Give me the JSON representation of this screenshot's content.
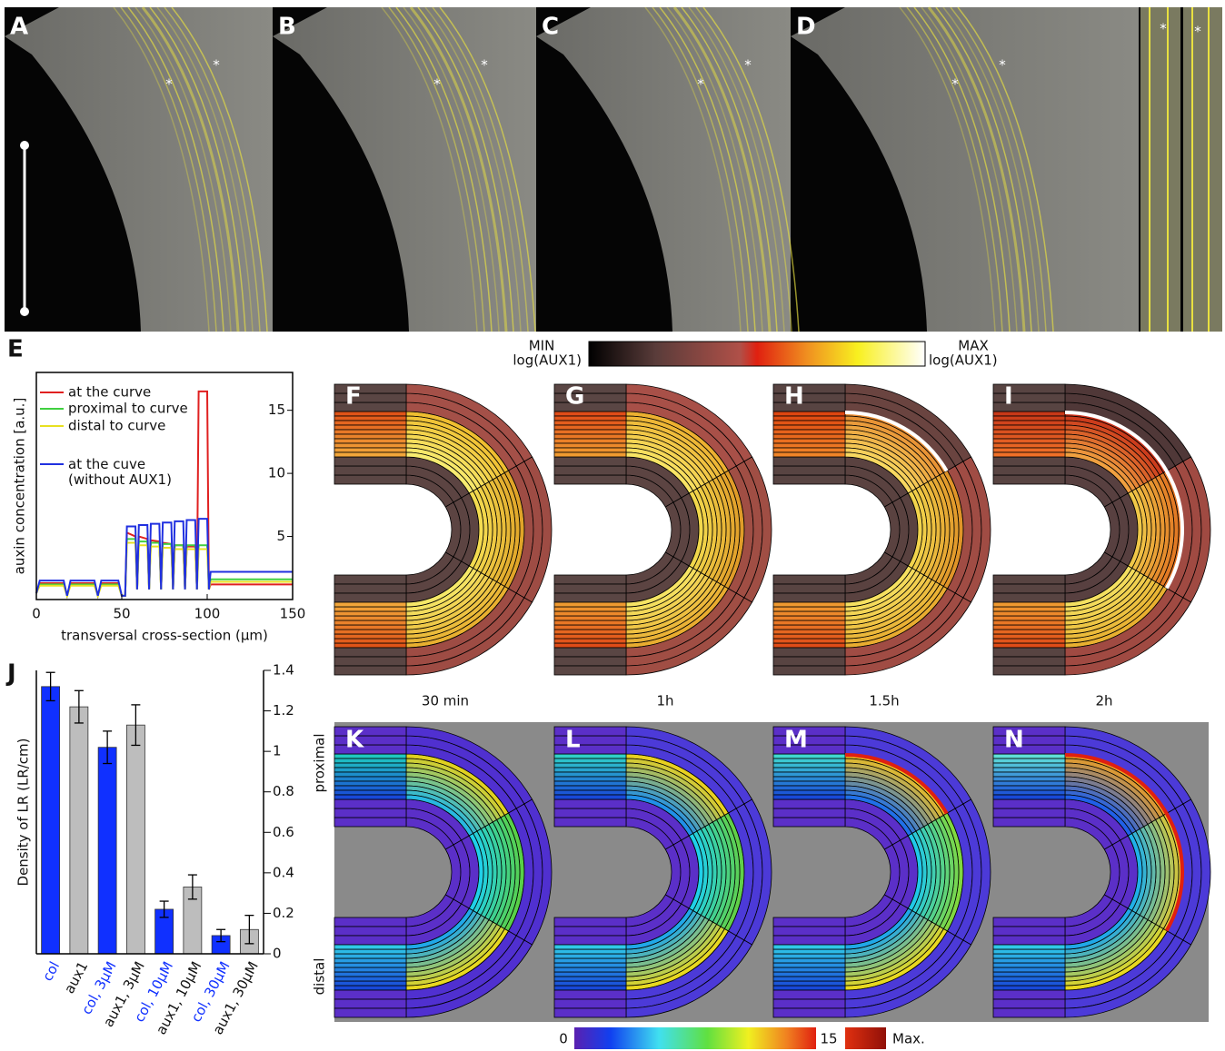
{
  "micrographs": [
    {
      "label": "A"
    },
    {
      "label": "B"
    },
    {
      "label": "C"
    },
    {
      "label": "D"
    }
  ],
  "asterisk": "*",
  "chart_data": [
    {
      "type": "line",
      "panel_label": "E",
      "ylabel": "auxin concentration [a.u.]",
      "xlabel": "transversal cross-section (μm)",
      "xlim": [
        0,
        150
      ],
      "xticks": [
        0,
        50,
        100,
        150
      ],
      "ylim": [
        0,
        18
      ],
      "yticks": [
        5,
        10,
        15
      ],
      "x": [
        0,
        2,
        16,
        18,
        20,
        34,
        36,
        38,
        48,
        50,
        52,
        53,
        58,
        59,
        60,
        65,
        66,
        67,
        72,
        73,
        74,
        79,
        80,
        81,
        86,
        87,
        88,
        93,
        94,
        95,
        100,
        101,
        102,
        150
      ],
      "series": [
        {
          "name": "at the curve",
          "color": "#e02020",
          "values": [
            0.5,
            1.3,
            1.3,
            0.3,
            1.3,
            1.3,
            0.3,
            1.3,
            1.3,
            0.3,
            0.3,
            5.3,
            5.0,
            0.8,
            5.0,
            4.8,
            0.8,
            4.7,
            4.6,
            0.8,
            4.5,
            4.4,
            0.8,
            4.3,
            4.3,
            0.8,
            4.2,
            4.2,
            0.8,
            16.5,
            16.5,
            0.8,
            1.2,
            1.2
          ]
        },
        {
          "name": "proximal to curve",
          "color": "#40d040",
          "values": [
            0.5,
            1.2,
            1.2,
            0.3,
            1.2,
            1.2,
            0.3,
            1.2,
            1.2,
            0.3,
            0.3,
            4.8,
            4.8,
            0.8,
            4.6,
            4.6,
            0.8,
            4.5,
            4.5,
            0.8,
            4.4,
            4.4,
            0.8,
            4.3,
            4.3,
            0.8,
            4.3,
            4.3,
            0.8,
            4.3,
            4.3,
            0.8,
            1.6,
            1.6
          ]
        },
        {
          "name": "distal to curve",
          "color": "#e8e020",
          "values": [
            0.5,
            1.1,
            1.1,
            0.3,
            1.1,
            1.1,
            0.3,
            1.1,
            1.1,
            0.3,
            0.3,
            4.5,
            4.5,
            0.8,
            4.3,
            4.3,
            0.8,
            4.2,
            4.2,
            0.8,
            4.1,
            4.1,
            0.8,
            4.0,
            4.0,
            0.8,
            4.0,
            4.0,
            0.8,
            4.0,
            4.0,
            0.8,
            1.4,
            1.4
          ]
        },
        {
          "name": "at the cuve (without AUX1)",
          "color": "#2030e0",
          "values": [
            0.5,
            1.5,
            1.5,
            0.3,
            1.5,
            1.5,
            0.3,
            1.5,
            1.5,
            0.3,
            0.3,
            5.8,
            5.8,
            0.8,
            5.9,
            5.9,
            0.8,
            6.0,
            6.0,
            0.8,
            6.1,
            6.1,
            0.8,
            6.2,
            6.2,
            0.8,
            6.3,
            6.3,
            0.8,
            6.4,
            6.4,
            0.8,
            2.2,
            2.2
          ]
        }
      ]
    },
    {
      "type": "bar",
      "panel_label": "J",
      "ylabel": "Density of  LR (LR/cm)",
      "categories": [
        "col",
        "aux1",
        "col, 3μM",
        "aux1, 3μM",
        "col, 10μM",
        "aux1, 10μM",
        "col, 30μM",
        "aux1, 30μM"
      ],
      "values": [
        1.32,
        1.22,
        1.02,
        1.13,
        0.22,
        0.33,
        0.09,
        0.12
      ],
      "errors": [
        0.07,
        0.08,
        0.08,
        0.1,
        0.04,
        0.06,
        0.03,
        0.07
      ],
      "colors": [
        "#1030ff",
        "#bdbdbd",
        "#1030ff",
        "#bdbdbd",
        "#1030ff",
        "#bdbdbd",
        "#1030ff",
        "#bdbdbd"
      ],
      "label_colors": [
        "#1030ff",
        "#111111",
        "#1030ff",
        "#111111",
        "#1030ff",
        "#111111",
        "#1030ff",
        "#111111"
      ],
      "ylim": [
        0,
        1.4
      ],
      "yticks": [
        0,
        0.2,
        0.4,
        0.6,
        0.8,
        1,
        1.2,
        1.4
      ]
    }
  ],
  "auxin_colorbar": {
    "min_label": "MIN",
    "min_sub": "log(AUX1)",
    "max_label": "MAX",
    "max_sub": "log(AUX1)"
  },
  "simulations": {
    "top_panels": [
      {
        "label": "F",
        "time": "30 min"
      },
      {
        "label": "G",
        "time": "1h"
      },
      {
        "label": "H",
        "time": "1.5h"
      },
      {
        "label": "I",
        "time": "2h"
      }
    ],
    "bottom_panels": [
      {
        "label": "K"
      },
      {
        "label": "L"
      },
      {
        "label": "M"
      },
      {
        "label": "N"
      }
    ],
    "row_labels": {
      "proximal": "proximal",
      "distal": "distal"
    },
    "colorbar": {
      "min": 0,
      "max": 15,
      "max_label": "Max."
    }
  }
}
